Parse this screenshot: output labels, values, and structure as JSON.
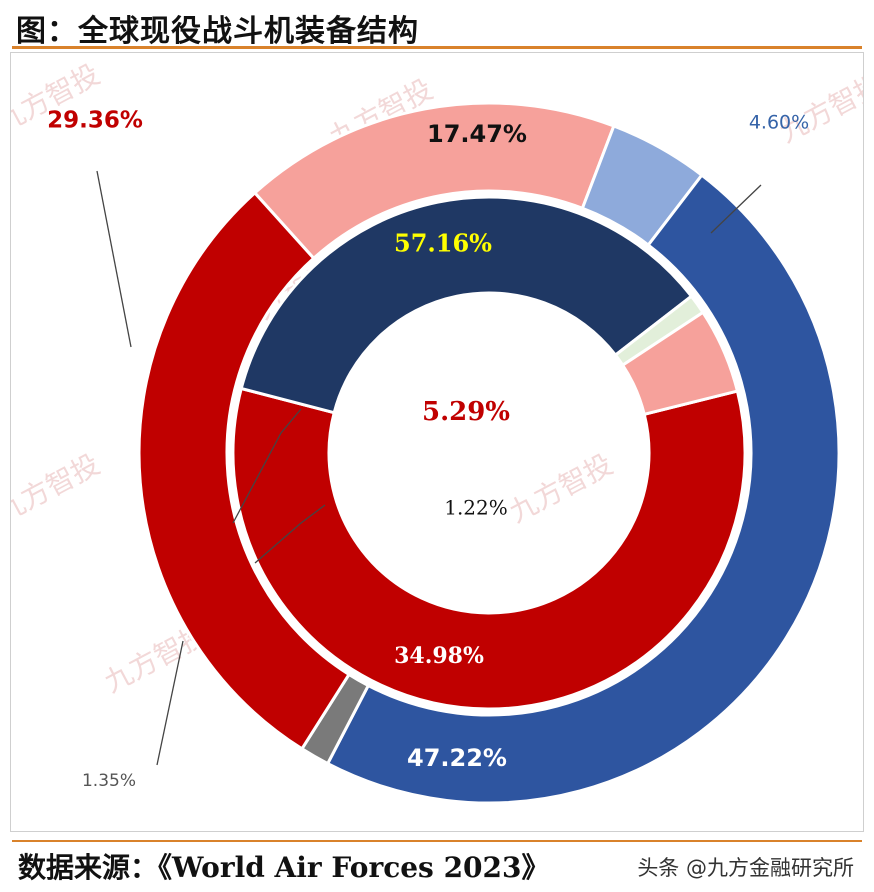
{
  "header": {
    "title": "图：全球现役战斗机装备结构"
  },
  "footer": {
    "source": "数据来源：《World Air Forces 2023》",
    "credit": "头条 @九方金融研究所"
  },
  "watermark": {
    "text": "九方智投"
  },
  "chart_data": {
    "type": "pie",
    "subtype": "doughnut",
    "title": "图：全球现役战斗机装备结构",
    "rings": [
      {
        "name": "",
        "position": "outer",
        "slices": [
          {
            "label": "17.47%",
            "value": 17.47,
            "color": "#f6a19b",
            "label_color": "#111111"
          },
          {
            "label": "4.60%",
            "value": 4.6,
            "color": "#8eaadb",
            "label_color": "#3563a8"
          },
          {
            "label": "47.22%",
            "value": 47.22,
            "color": "#2e55a0",
            "label_color": "#ffffff"
          },
          {
            "label": "1.35%",
            "value": 1.35,
            "color": "#7a7a7a",
            "label_color": "#555555"
          },
          {
            "label": "29.36%",
            "value": 29.36,
            "color": "#c00000",
            "label_color": "#c00000"
          }
        ]
      },
      {
        "name": "",
        "position": "inner",
        "slices": [
          {
            "label": "57.16%",
            "value": 57.16,
            "color": "#c00000",
            "label_color": "#ffff00"
          },
          {
            "label": "34.98%",
            "value": 34.98,
            "color": "#1f3864",
            "label_color": "#ffffff"
          },
          {
            "label": "1.22%",
            "value": 1.22,
            "color": "#e2efda",
            "label_color": "#111111"
          },
          {
            "label": "5.29%",
            "value": 5.29,
            "color": "#f6a19b",
            "label_color": "#c00000"
          }
        ]
      }
    ]
  }
}
